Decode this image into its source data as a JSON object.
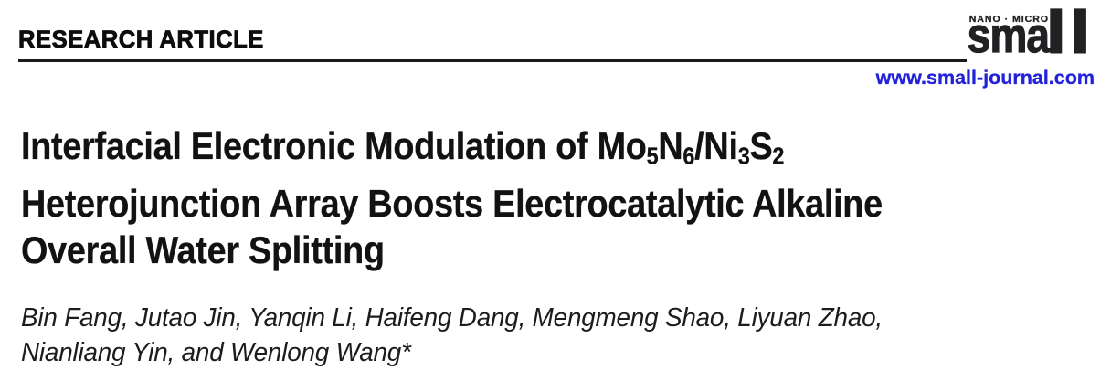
{
  "header": {
    "kicker": "RESEARCH ARTICLE",
    "rule_color": "#1a1a1a"
  },
  "journal": {
    "tagline": "NANO · MICRO",
    "logo_text": "sma",
    "logo_tall": "ll",
    "logo_full_name": "small",
    "website": "www.small-journal.com",
    "website_color": "#2222dc",
    "logo_color": "#232024"
  },
  "article": {
    "title_plain": "Interfacial Electronic Modulation of Mo5N6/Ni3S2 Heterojunction Array Boosts Electrocatalytic Alkaline Overall Water Splitting",
    "title_lines": [
      {
        "segments": [
          {
            "text": "Interfacial Electronic Modulation of Mo"
          },
          {
            "text": "5",
            "sub": true
          },
          {
            "text": "N"
          },
          {
            "text": "6",
            "sub": true
          },
          {
            "text": "/Ni"
          },
          {
            "text": "3",
            "sub": true
          },
          {
            "text": "S"
          },
          {
            "text": "2",
            "sub": true
          }
        ]
      },
      {
        "segments": [
          {
            "text": "Heterojunction Array Boosts Electrocatalytic Alkaline"
          }
        ]
      },
      {
        "segments": [
          {
            "text": "Overall Water Splitting"
          }
        ]
      }
    ],
    "authors_lines": [
      "Bin Fang, Jutao Jin, Yanqin Li, Haifeng Dang, Mengmeng Shao, Liyuan Zhao,",
      "Nianliang Yin, and Wenlong Wang*"
    ]
  }
}
